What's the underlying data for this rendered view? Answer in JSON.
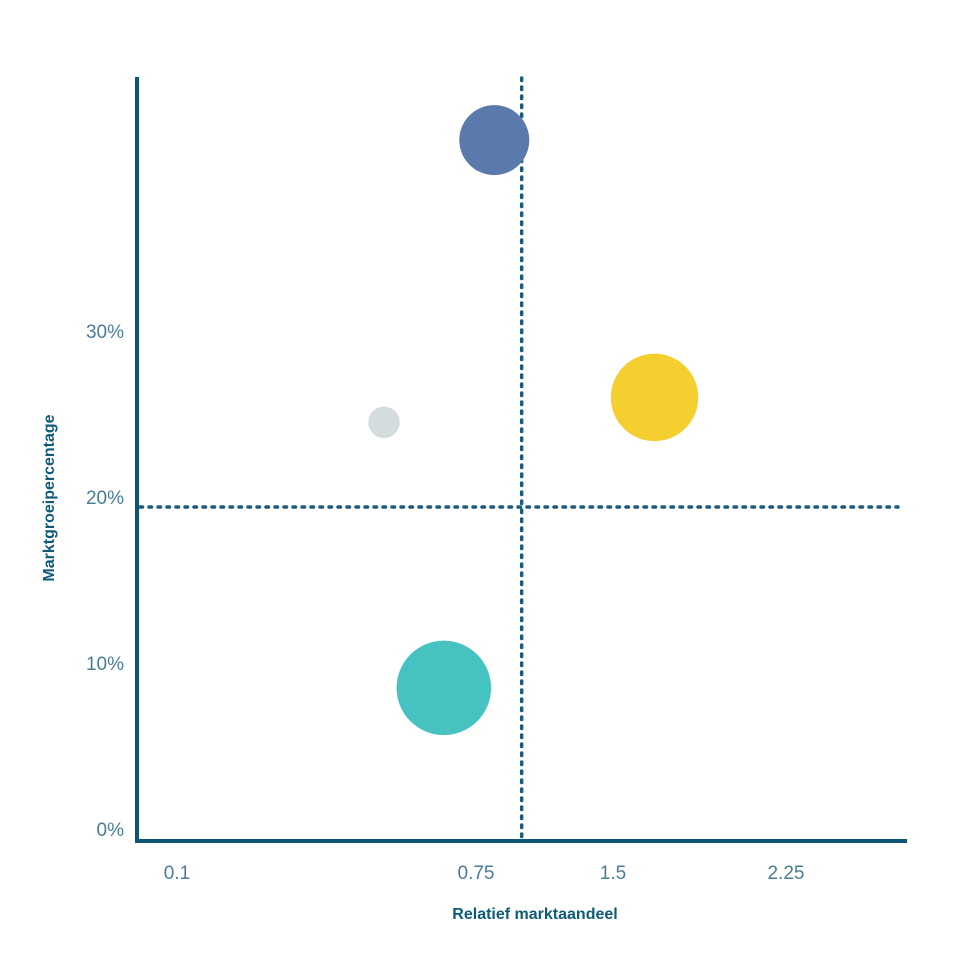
{
  "chart_data": {
    "type": "scatter",
    "title": "",
    "xlabel": "Relatief marktaandeel",
    "ylabel": "Marktgroeipercentage",
    "grid": false,
    "legend": "none",
    "x_ticks": [
      {
        "value": 0.1,
        "label": "0.1"
      },
      {
        "value": 0.75,
        "label": "0.75"
      },
      {
        "value": 1.5,
        "label": "1.5"
      },
      {
        "value": 2.25,
        "label": "2.25"
      }
    ],
    "y_ticks": [
      {
        "value": 0,
        "label": "0%"
      },
      {
        "value": 10,
        "label": "10%"
      },
      {
        "value": 20,
        "label": "20%"
      },
      {
        "value": 30,
        "label": "30%"
      }
    ],
    "x_split": 1.0,
    "y_split": 20,
    "points": [
      {
        "x": 0.85,
        "y": 41.5,
        "size": 1.0,
        "color": "#5a7aac"
      },
      {
        "x": 0.55,
        "y": 24.5,
        "size": 0.45,
        "color": "#d5dcde"
      },
      {
        "x": 1.68,
        "y": 26.0,
        "size": 1.25,
        "color": "#f5cf30"
      },
      {
        "x": 0.68,
        "y": 8.5,
        "size": 1.35,
        "color": "#46c2c0"
      }
    ]
  },
  "colors": {
    "axis": "#0d5573",
    "divider": "#1e5b7a",
    "tick_text": "#4a7d96",
    "title_text": "#0d5a7a"
  }
}
